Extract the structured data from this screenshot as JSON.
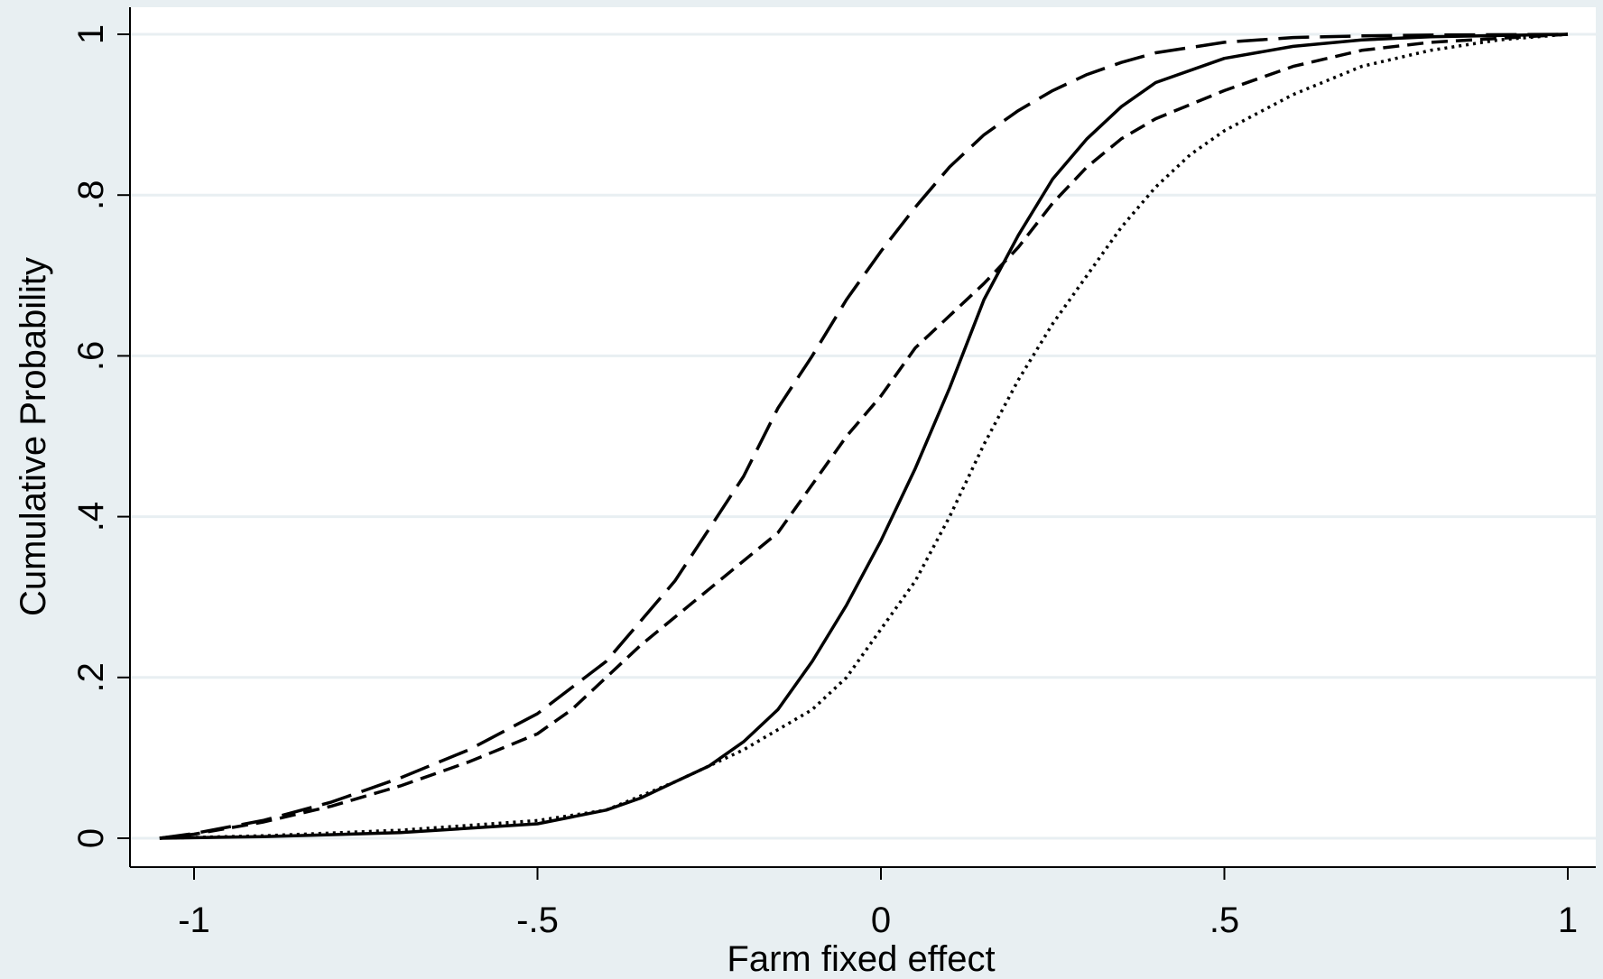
{
  "chart_data": {
    "type": "line",
    "title": "",
    "xlabel": "Farm fixed effect",
    "ylabel": "Cumulative Probability",
    "xlim": [
      -1.1,
      1.04
    ],
    "ylim": [
      -0.04,
      1.04
    ],
    "x_ticks": [
      -1,
      -0.5,
      0,
      0.5,
      1
    ],
    "x_tick_labels": [
      "-1",
      "-.5",
      "0",
      ".5",
      "1"
    ],
    "y_ticks": [
      0,
      0.2,
      0.4,
      0.6,
      0.8,
      1
    ],
    "y_tick_labels": [
      "0",
      ".2",
      ".4",
      ".6",
      ".8",
      "1"
    ],
    "grid": "horizontal",
    "legend": "none",
    "line_color": "#000000",
    "series": [
      {
        "style": "long-dash",
        "points": [
          [
            -1.05,
            0
          ],
          [
            -1.0,
            0.006
          ],
          [
            -0.9,
            0.022
          ],
          [
            -0.8,
            0.045
          ],
          [
            -0.7,
            0.075
          ],
          [
            -0.6,
            0.11
          ],
          [
            -0.5,
            0.155
          ],
          [
            -0.4,
            0.22
          ],
          [
            -0.3,
            0.32
          ],
          [
            -0.25,
            0.385
          ],
          [
            -0.2,
            0.45
          ],
          [
            -0.15,
            0.535
          ],
          [
            -0.1,
            0.6
          ],
          [
            -0.05,
            0.67
          ],
          [
            0,
            0.73
          ],
          [
            0.05,
            0.785
          ],
          [
            0.1,
            0.835
          ],
          [
            0.15,
            0.875
          ],
          [
            0.2,
            0.905
          ],
          [
            0.25,
            0.93
          ],
          [
            0.3,
            0.95
          ],
          [
            0.35,
            0.965
          ],
          [
            0.4,
            0.977
          ],
          [
            0.5,
            0.99
          ],
          [
            0.6,
            0.996
          ],
          [
            0.7,
            0.998
          ],
          [
            0.8,
            0.999
          ],
          [
            1.0,
            1.0
          ]
        ]
      },
      {
        "style": "short-dash",
        "points": [
          [
            -1.05,
            0
          ],
          [
            -1.0,
            0.005
          ],
          [
            -0.9,
            0.02
          ],
          [
            -0.8,
            0.04
          ],
          [
            -0.7,
            0.065
          ],
          [
            -0.6,
            0.095
          ],
          [
            -0.5,
            0.13
          ],
          [
            -0.45,
            0.16
          ],
          [
            -0.4,
            0.2
          ],
          [
            -0.35,
            0.24
          ],
          [
            -0.3,
            0.275
          ],
          [
            -0.25,
            0.31
          ],
          [
            -0.2,
            0.345
          ],
          [
            -0.15,
            0.38
          ],
          [
            -0.1,
            0.44
          ],
          [
            -0.05,
            0.5
          ],
          [
            0,
            0.55
          ],
          [
            0.05,
            0.61
          ],
          [
            0.1,
            0.65
          ],
          [
            0.15,
            0.69
          ],
          [
            0.2,
            0.735
          ],
          [
            0.25,
            0.79
          ],
          [
            0.3,
            0.835
          ],
          [
            0.35,
            0.87
          ],
          [
            0.4,
            0.895
          ],
          [
            0.5,
            0.93
          ],
          [
            0.6,
            0.96
          ],
          [
            0.7,
            0.98
          ],
          [
            0.8,
            0.99
          ],
          [
            0.9,
            0.995
          ],
          [
            1.0,
            1.0
          ]
        ]
      },
      {
        "style": "solid",
        "points": [
          [
            -1.05,
            0
          ],
          [
            -0.9,
            0.002
          ],
          [
            -0.7,
            0.007
          ],
          [
            -0.5,
            0.018
          ],
          [
            -0.4,
            0.035
          ],
          [
            -0.35,
            0.05
          ],
          [
            -0.3,
            0.07
          ],
          [
            -0.25,
            0.09
          ],
          [
            -0.2,
            0.12
          ],
          [
            -0.15,
            0.16
          ],
          [
            -0.1,
            0.22
          ],
          [
            -0.05,
            0.29
          ],
          [
            0,
            0.37
          ],
          [
            0.05,
            0.46
          ],
          [
            0.1,
            0.56
          ],
          [
            0.15,
            0.67
          ],
          [
            0.2,
            0.75
          ],
          [
            0.25,
            0.82
          ],
          [
            0.3,
            0.87
          ],
          [
            0.35,
            0.91
          ],
          [
            0.4,
            0.94
          ],
          [
            0.5,
            0.97
          ],
          [
            0.6,
            0.985
          ],
          [
            0.7,
            0.993
          ],
          [
            0.8,
            0.997
          ],
          [
            1.0,
            1.0
          ]
        ]
      },
      {
        "style": "dotted",
        "points": [
          [
            -1.05,
            0
          ],
          [
            -0.9,
            0.003
          ],
          [
            -0.7,
            0.01
          ],
          [
            -0.5,
            0.022
          ],
          [
            -0.4,
            0.035
          ],
          [
            -0.3,
            0.07
          ],
          [
            -0.2,
            0.11
          ],
          [
            -0.1,
            0.16
          ],
          [
            -0.05,
            0.2
          ],
          [
            0,
            0.26
          ],
          [
            0.05,
            0.32
          ],
          [
            0.1,
            0.4
          ],
          [
            0.15,
            0.49
          ],
          [
            0.2,
            0.57
          ],
          [
            0.25,
            0.64
          ],
          [
            0.3,
            0.7
          ],
          [
            0.35,
            0.76
          ],
          [
            0.4,
            0.81
          ],
          [
            0.45,
            0.85
          ],
          [
            0.5,
            0.88
          ],
          [
            0.6,
            0.925
          ],
          [
            0.7,
            0.96
          ],
          [
            0.8,
            0.98
          ],
          [
            0.9,
            0.993
          ],
          [
            1.0,
            1.0
          ]
        ]
      }
    ]
  }
}
